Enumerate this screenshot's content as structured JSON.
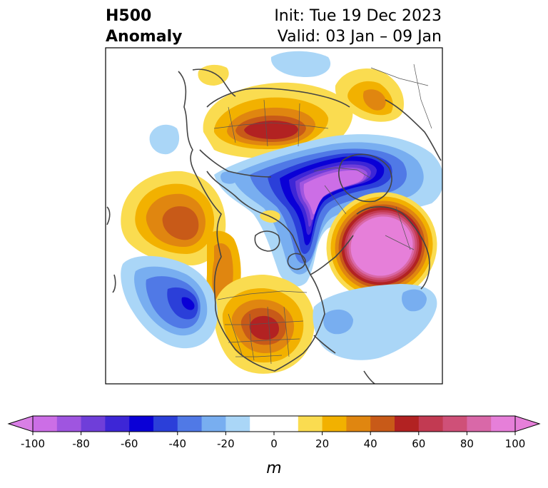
{
  "title": {
    "left_line1": "H500",
    "left_line2": "Anomaly",
    "right_line1": "Init: Tue 19 Dec 2023",
    "right_line2": "Valid: 03 Jan – 09 Jan"
  },
  "colorbar": {
    "units": "m",
    "ticks": [
      "-100",
      "-80",
      "-60",
      "-40",
      "-20",
      "0",
      "20",
      "40",
      "60",
      "80",
      "100"
    ],
    "extend_low_color": "#d97fe6",
    "extend_high_color": "#e67fd9",
    "colors": [
      "#cc6ee6",
      "#9f55e0",
      "#6f3ed9",
      "#3d26d6",
      "#0a00d6",
      "#2b3fd9",
      "#5079e6",
      "#78aef0",
      "#aad6f7",
      "#ffffff",
      "#ffffff",
      "#fadc50",
      "#f2b100",
      "#e08610",
      "#c85a18",
      "#b22222",
      "#c23a52",
      "#cf5078",
      "#d968a8",
      "#e67fd9"
    ]
  },
  "map": {
    "region": "North America / Arctic polar stereographic",
    "anomalies": [
      {
        "name": "siberia-high",
        "sign": "positive",
        "peak": 60
      },
      {
        "name": "arctic-low",
        "sign": "negative",
        "peak": -100
      },
      {
        "name": "north-atlantic-high",
        "sign": "positive",
        "peak": 100
      },
      {
        "name": "north-pacific-high",
        "sign": "positive",
        "peak": 50
      },
      {
        "name": "east-pacific-low",
        "sign": "negative",
        "peak": -60
      },
      {
        "name": "central-us-high",
        "sign": "positive",
        "peak": 60
      },
      {
        "name": "western-atlantic-low",
        "sign": "negative",
        "peak": -30
      }
    ]
  }
}
